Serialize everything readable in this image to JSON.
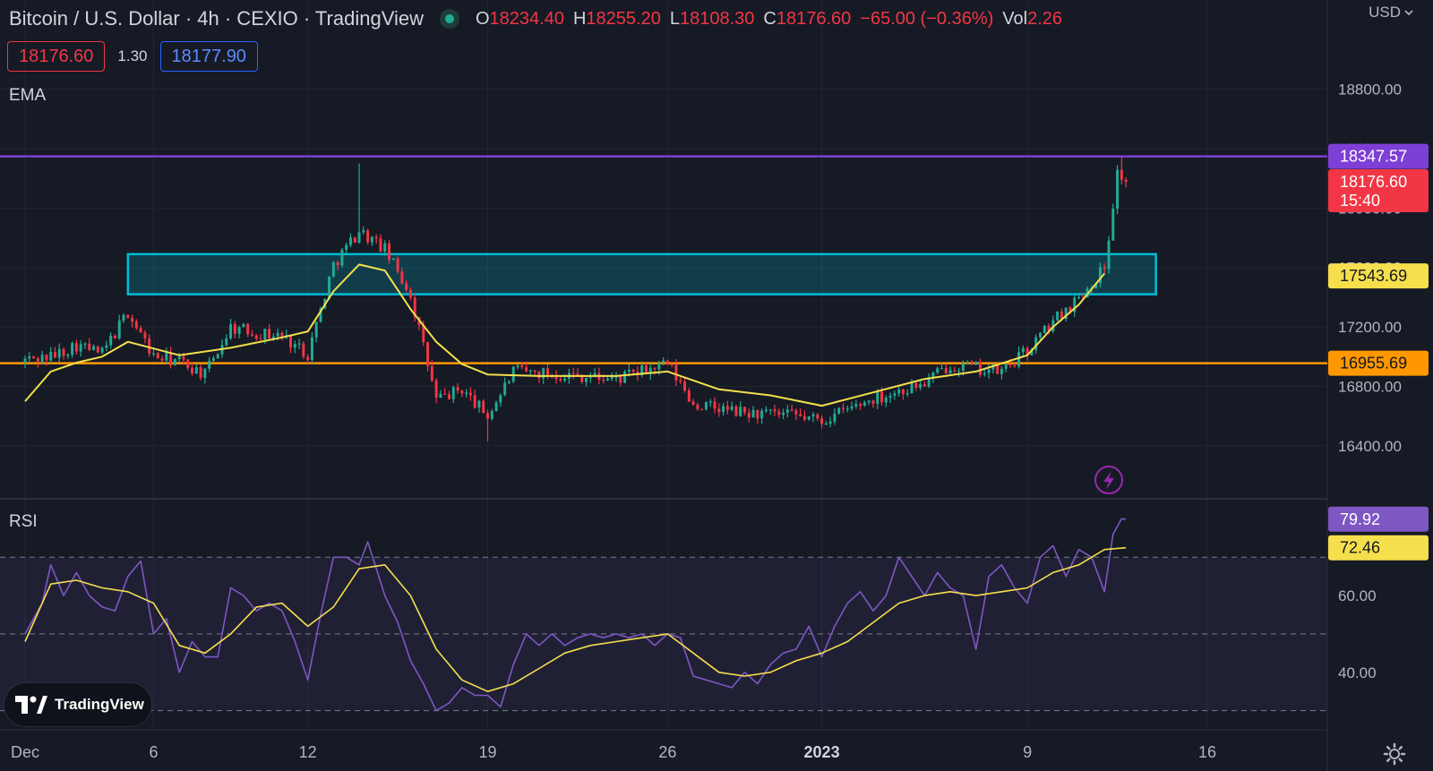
{
  "header": {
    "title": "Bitcoin / U.S. Dollar · 4h · CEXIO · TradingView",
    "ohlc": [
      {
        "key": "O",
        "value": "18234.40"
      },
      {
        "key": "H",
        "value": "18255.20"
      },
      {
        "key": "L",
        "value": "18108.30"
      },
      {
        "key": "C",
        "value": "18176.60"
      }
    ],
    "change": "−65.00 (−0.36%)",
    "vol_label": "Vol",
    "vol_value": "2.26",
    "currency": "USD"
  },
  "trade": {
    "sell": "18176.60",
    "spread": "1.30",
    "buy": "18177.90"
  },
  "labels": {
    "ema": "EMA",
    "rsi": "RSI",
    "logo": "TradingView"
  },
  "colors": {
    "background": "#161a25",
    "up": "#22ab94",
    "down": "#f23645",
    "ema": "#f5df4d",
    "rsi": "#7e57c2",
    "resistance": "#7e3fd6",
    "zone": "#00bcd4",
    "support": "#ff9800"
  },
  "chart_data": [
    {
      "type": "candlestick",
      "x_axis": {
        "tick_labels": [
          "Dec",
          "6",
          "12",
          "19",
          "26",
          "2023",
          "9",
          "16"
        ],
        "tick_dates": [
          "2022-12-01",
          "2022-12-06",
          "2022-12-12",
          "2022-12-19",
          "2022-12-26",
          "2023-01-01",
          "2023-01-09",
          "2023-01-16"
        ]
      },
      "y_axis": {
        "ticks": [
          16400,
          16800,
          17200,
          17600,
          18000,
          18400,
          18800
        ],
        "tick_labels": [
          "16400.00",
          "16800.00",
          "17200.00",
          "17600.00",
          "18000.00",
          "18400.00",
          "18800.00"
        ],
        "ylim": [
          16050,
          19400
        ]
      },
      "ema_keypoints": [
        [
          "2022-12-01",
          16700
        ],
        [
          "2022-12-02",
          16900
        ],
        [
          "2022-12-03",
          16960
        ],
        [
          "2022-12-04",
          17000
        ],
        [
          "2022-12-05",
          17100
        ],
        [
          "2022-12-07",
          17010
        ],
        [
          "2022-12-09",
          17060
        ],
        [
          "2022-12-11",
          17130
        ],
        [
          "2022-12-12",
          17170
        ],
        [
          "2022-12-13",
          17440
        ],
        [
          "2022-12-14",
          17620
        ],
        [
          "2022-12-15",
          17580
        ],
        [
          "2022-12-16",
          17320
        ],
        [
          "2022-12-17",
          17100
        ],
        [
          "2022-12-18",
          16950
        ],
        [
          "2022-12-19",
          16880
        ],
        [
          "2022-12-21",
          16870
        ],
        [
          "2022-12-24",
          16870
        ],
        [
          "2022-12-26",
          16900
        ],
        [
          "2022-12-28",
          16780
        ],
        [
          "2022-12-30",
          16740
        ],
        [
          "2023-01-01",
          16670
        ],
        [
          "2023-01-03",
          16760
        ],
        [
          "2023-01-05",
          16850
        ],
        [
          "2023-01-07",
          16900
        ],
        [
          "2023-01-09",
          17010
        ],
        [
          "2023-01-10",
          17200
        ],
        [
          "2023-01-11",
          17350
        ],
        [
          "2023-01-12",
          17560
        ]
      ],
      "candle_path": [
        [
          "2022-12-01",
          16980
        ],
        [
          "2022-12-02",
          17000
        ],
        [
          "2022-12-03",
          17080
        ],
        [
          "2022-12-04",
          17020
        ],
        [
          "2022-12-05",
          17300
        ],
        [
          "2022-12-06",
          17000
        ],
        [
          "2022-12-07",
          16970
        ],
        [
          "2022-12-08",
          16880
        ],
        [
          "2022-12-09",
          17200
        ],
        [
          "2022-12-10",
          17160
        ],
        [
          "2022-12-11",
          17140
        ],
        [
          "2022-12-12",
          17020
        ],
        [
          "2022-12-13",
          17620
        ],
        [
          "2022-12-14",
          17850
        ],
        [
          "2022-12-15",
          17720
        ],
        [
          "2022-12-16",
          17420
        ],
        [
          "2022-12-17",
          16710
        ],
        [
          "2022-12-18",
          16780
        ],
        [
          "2022-12-19",
          16600
        ],
        [
          "2022-12-20",
          16900
        ],
        [
          "2022-12-22",
          16880
        ],
        [
          "2022-12-24",
          16850
        ],
        [
          "2022-12-26",
          16950
        ],
        [
          "2022-12-27",
          16680
        ],
        [
          "2022-12-29",
          16620
        ],
        [
          "2022-12-31",
          16600
        ],
        [
          "2023-01-01",
          16570
        ],
        [
          "2023-01-03",
          16720
        ],
        [
          "2023-01-05",
          16820
        ],
        [
          "2023-01-06",
          16950
        ],
        [
          "2023-01-07",
          16920
        ],
        [
          "2023-01-08",
          16900
        ],
        [
          "2023-01-09",
          17040
        ],
        [
          "2023-01-10",
          17240
        ],
        [
          "2023-01-11",
          17400
        ],
        [
          "2023-01-12",
          17600
        ],
        [
          "2023-01-12T12:00",
          18240
        ],
        [
          "2023-01-12T20:00",
          18176.6
        ]
      ],
      "extremes": [
        [
          "2022-12-14",
          18300,
          "high"
        ],
        [
          "2022-12-19",
          16430,
          "low"
        ],
        [
          "2023-01-12T16:00",
          18347,
          "high"
        ]
      ],
      "levels": [
        {
          "name": "resistance",
          "value": 18347.57,
          "label": "18347.57"
        },
        {
          "name": "support",
          "value": 16955.69,
          "label": "16955.69"
        }
      ],
      "zone": {
        "from_date": "2022-12-05",
        "to_date": "2023-01-14",
        "low": 17420,
        "high": 17690
      },
      "price_tags": [
        {
          "name": "last-price",
          "label": "18176.60",
          "sub": "15:40",
          "value": 18176.6
        },
        {
          "name": "ema-value",
          "label": "17543.69",
          "value": 17543.69
        }
      ]
    },
    {
      "type": "line",
      "series": [
        {
          "name": "RSI",
          "points": [
            [
              "2022-12-01",
              50
            ],
            [
              "2022-12-01T16:00",
              58
            ],
            [
              "2022-12-02",
              68
            ],
            [
              "2022-12-02T12:00",
              60
            ],
            [
              "2022-12-03",
              66
            ],
            [
              "2022-12-03T12:00",
              60
            ],
            [
              "2022-12-04",
              57
            ],
            [
              "2022-12-04T12:00",
              56
            ],
            [
              "2022-12-05",
              65
            ],
            [
              "2022-12-05T12:00",
              69
            ],
            [
              "2022-12-06",
              50
            ],
            [
              "2022-12-06T12:00",
              54
            ],
            [
              "2022-12-07",
              40
            ],
            [
              "2022-12-07T12:00",
              48
            ],
            [
              "2022-12-08",
              44
            ],
            [
              "2022-12-08T12:00",
              44
            ],
            [
              "2022-12-09",
              62
            ],
            [
              "2022-12-09T12:00",
              60
            ],
            [
              "2022-12-10",
              56
            ],
            [
              "2022-12-10T12:00",
              58
            ],
            [
              "2022-12-11",
              56
            ],
            [
              "2022-12-11T12:00",
              48
            ],
            [
              "2022-12-12",
              38
            ],
            [
              "2022-12-12T12:00",
              55
            ],
            [
              "2022-12-13",
              70
            ],
            [
              "2022-12-13T12:00",
              70
            ],
            [
              "2022-12-14",
              68
            ],
            [
              "2022-12-14T08:00",
              74
            ],
            [
              "2022-12-14T16:00",
              67
            ],
            [
              "2022-12-15",
              60
            ],
            [
              "2022-12-15T12:00",
              53
            ],
            [
              "2022-12-16",
              43
            ],
            [
              "2022-12-16T12:00",
              37
            ],
            [
              "2022-12-17",
              30
            ],
            [
              "2022-12-17T12:00",
              32
            ],
            [
              "2022-12-18",
              36
            ],
            [
              "2022-12-18T12:00",
              34
            ],
            [
              "2022-12-19",
              34
            ],
            [
              "2022-12-19T12:00",
              31
            ],
            [
              "2022-12-20",
              42
            ],
            [
              "2022-12-20T12:00",
              50
            ],
            [
              "2022-12-21",
              47
            ],
            [
              "2022-12-21T12:00",
              50
            ],
            [
              "2022-12-22",
              47
            ],
            [
              "2022-12-22T12:00",
              49
            ],
            [
              "2022-12-23",
              50
            ],
            [
              "2022-12-23T12:00",
              49
            ],
            [
              "2022-12-24",
              50
            ],
            [
              "2022-12-24T12:00",
              49
            ],
            [
              "2022-12-25",
              50
            ],
            [
              "2022-12-25T12:00",
              47
            ],
            [
              "2022-12-26",
              50
            ],
            [
              "2022-12-26T12:00",
              49
            ],
            [
              "2022-12-27",
              39
            ],
            [
              "2022-12-27T12:00",
              38
            ],
            [
              "2022-12-28",
              37
            ],
            [
              "2022-12-28T12:00",
              36
            ],
            [
              "2022-12-29",
              40
            ],
            [
              "2022-12-29T12:00",
              37
            ],
            [
              "2022-12-30",
              42
            ],
            [
              "2022-12-30T12:00",
              45
            ],
            [
              "2022-12-31",
              46
            ],
            [
              "2022-12-31T12:00",
              52
            ],
            [
              "2023-01-01",
              44
            ],
            [
              "2023-01-01T12:00",
              52
            ],
            [
              "2023-01-02",
              58
            ],
            [
              "2023-01-02T12:00",
              61
            ],
            [
              "2023-01-03",
              56
            ],
            [
              "2023-01-03T12:00",
              60
            ],
            [
              "2023-01-04",
              70
            ],
            [
              "2023-01-04T12:00",
              65
            ],
            [
              "2023-01-05",
              60
            ],
            [
              "2023-01-05T12:00",
              66
            ],
            [
              "2023-01-06",
              62
            ],
            [
              "2023-01-06T12:00",
              60
            ],
            [
              "2023-01-07",
              46
            ],
            [
              "2023-01-07T12:00",
              65
            ],
            [
              "2023-01-08",
              68
            ],
            [
              "2023-01-08T12:00",
              62
            ],
            [
              "2023-01-09",
              58
            ],
            [
              "2023-01-09T12:00",
              70
            ],
            [
              "2023-01-10",
              73
            ],
            [
              "2023-01-10T12:00",
              65
            ],
            [
              "2023-01-11",
              72
            ],
            [
              "2023-01-11T12:00",
              70
            ],
            [
              "2023-01-12",
              61
            ],
            [
              "2023-01-12T08:00",
              76
            ],
            [
              "2023-01-12T16:00",
              80
            ],
            [
              "2023-01-12T20:00",
              79.92
            ]
          ]
        },
        {
          "name": "RSI-based MA",
          "points": [
            [
              "2022-12-01",
              48
            ],
            [
              "2022-12-02",
              63
            ],
            [
              "2022-12-03",
              64
            ],
            [
              "2022-12-04",
              62
            ],
            [
              "2022-12-05",
              61
            ],
            [
              "2022-12-06",
              58
            ],
            [
              "2022-12-07",
              47
            ],
            [
              "2022-12-08",
              45
            ],
            [
              "2022-12-09",
              50
            ],
            [
              "2022-12-10",
              57
            ],
            [
              "2022-12-11",
              58
            ],
            [
              "2022-12-12",
              52
            ],
            [
              "2022-12-13",
              57
            ],
            [
              "2022-12-14",
              67
            ],
            [
              "2022-12-15",
              68
            ],
            [
              "2022-12-16",
              60
            ],
            [
              "2022-12-17",
              46
            ],
            [
              "2022-12-18",
              38
            ],
            [
              "2022-12-19",
              35
            ],
            [
              "2022-12-20",
              37
            ],
            [
              "2022-12-21",
              41
            ],
            [
              "2022-12-22",
              45
            ],
            [
              "2022-12-23",
              47
            ],
            [
              "2022-12-24",
              48
            ],
            [
              "2022-12-25",
              49
            ],
            [
              "2022-12-26",
              50
            ],
            [
              "2022-12-27",
              45
            ],
            [
              "2022-12-28",
              40
            ],
            [
              "2022-12-29",
              39
            ],
            [
              "2022-12-30",
              40
            ],
            [
              "2022-12-31",
              43
            ],
            [
              "2023-01-01",
              45
            ],
            [
              "2023-01-02",
              48
            ],
            [
              "2023-01-03",
              53
            ],
            [
              "2023-01-04",
              58
            ],
            [
              "2023-01-05",
              60
            ],
            [
              "2023-01-06",
              61
            ],
            [
              "2023-01-07",
              60
            ],
            [
              "2023-01-08",
              61
            ],
            [
              "2023-01-09",
              62
            ],
            [
              "2023-01-10",
              66
            ],
            [
              "2023-01-11",
              68
            ],
            [
              "2023-01-12",
              72
            ],
            [
              "2023-01-12T20:00",
              72.46
            ]
          ]
        }
      ],
      "y_axis": {
        "ticks": [
          40,
          60
        ],
        "tick_labels": [
          "40.00",
          "60.00"
        ],
        "ylim": [
          25,
          85
        ]
      },
      "bands": [
        30,
        50,
        70
      ],
      "band_fill": [
        30,
        70
      ],
      "price_tags": [
        {
          "name": "rsi-value",
          "label": "79.92",
          "value": 79.92
        },
        {
          "name": "rsi-ma-value",
          "label": "72.46",
          "value": 72.46
        }
      ]
    }
  ]
}
